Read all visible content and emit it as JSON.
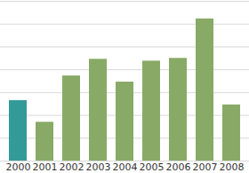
{
  "chart_data": {
    "type": "bar",
    "categories": [
      "2000",
      "2001",
      "2002",
      "2003",
      "2004",
      "2005",
      "2006",
      "2007",
      "2008"
    ],
    "values": [
      2.65,
      1.7,
      3.73,
      4.46,
      3.46,
      4.38,
      4.5,
      6.23,
      2.46
    ],
    "colors": [
      "#339999",
      "#88aa66",
      "#88aa66",
      "#88aa66",
      "#88aa66",
      "#88aa66",
      "#88aa66",
      "#88aa66",
      "#88aa66"
    ],
    "ylim": [
      0,
      7
    ],
    "yticks": [
      0,
      1,
      2,
      3,
      4,
      5,
      6,
      7
    ],
    "grid": true,
    "tick_labels": "x"
  }
}
